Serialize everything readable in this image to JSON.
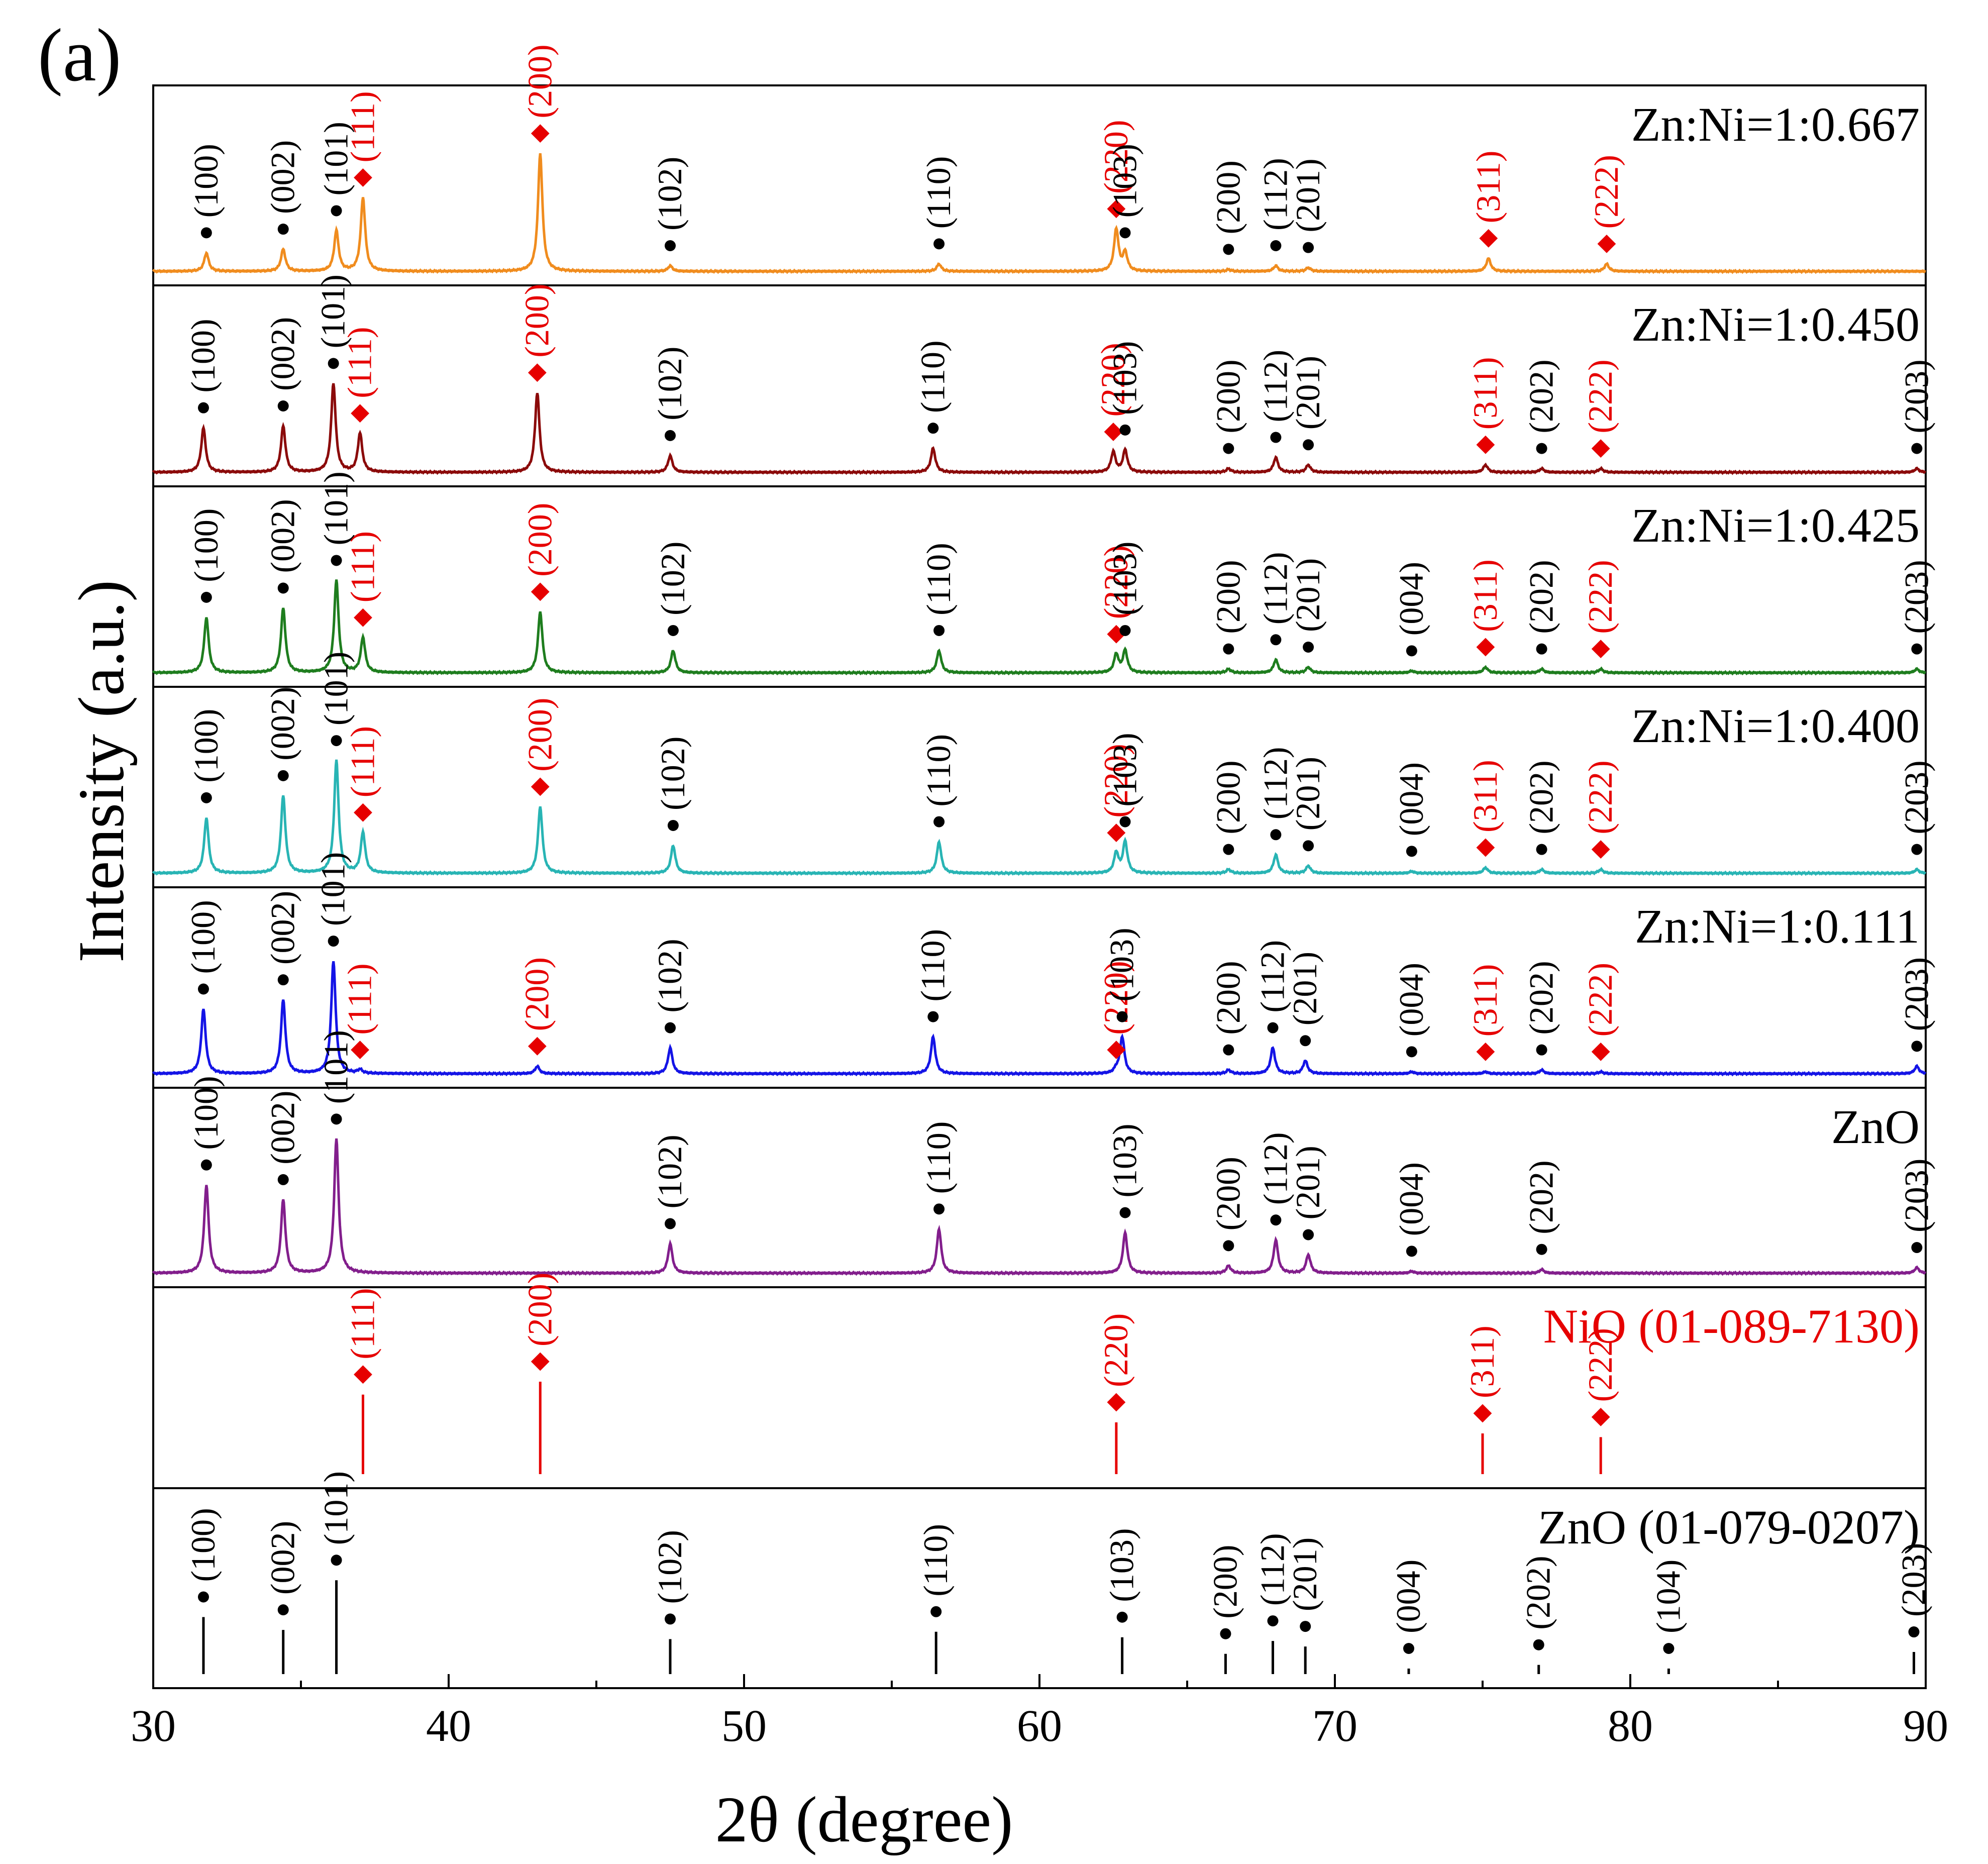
{
  "panel_label": "(a)",
  "chart_data": {
    "type": "line",
    "xlabel": "2θ (degree)",
    "ylabel": "Intensity (a.u.)",
    "xlim": [
      30,
      90
    ],
    "xticks": [
      30,
      40,
      50,
      60,
      70,
      80,
      90
    ],
    "grid": false,
    "colors": {
      "Zn:Ni=1:0.667": "#f08c1e",
      "Zn:Ni=1:0.450": "#8b0a0a",
      "Zn:Ni=1:0.425": "#1e7d1e",
      "Zn:Ni=1:0.400": "#28b4b4",
      "Zn:Ni=1:0.111": "#1414e6",
      "ZnO": "#821e8c",
      "NiO (01-089-7130)": "#e60000",
      "ZnO (01-079-0207)": "#000000",
      "zno_label": "#000000",
      "nio_label": "#e60000"
    },
    "panels": [
      {
        "label": "Zn:Ni=1:0.667",
        "kind": "pattern",
        "peaks": [
          {
            "x": 31.8,
            "h": 0.1,
            "hkl": "(100)",
            "phase": "ZnO"
          },
          {
            "x": 34.4,
            "h": 0.12,
            "hkl": "(002)",
            "phase": "ZnO"
          },
          {
            "x": 36.2,
            "h": 0.22,
            "hkl": "(101)",
            "phase": "ZnO"
          },
          {
            "x": 37.1,
            "h": 0.4,
            "hkl": "(111)",
            "phase": "NiO"
          },
          {
            "x": 43.1,
            "h": 0.64,
            "hkl": "(200)",
            "phase": "NiO"
          },
          {
            "x": 47.5,
            "h": 0.03,
            "hkl": "(102)",
            "phase": "ZnO"
          },
          {
            "x": 56.6,
            "h": 0.04,
            "hkl": "(110)",
            "phase": "ZnO"
          },
          {
            "x": 62.6,
            "h": 0.23,
            "hkl": "(220)",
            "phase": "NiO"
          },
          {
            "x": 62.9,
            "h": 0.1,
            "hkl": "(103)",
            "phase": "ZnO"
          },
          {
            "x": 66.4,
            "h": 0.01,
            "hkl": "(200)",
            "phase": "ZnO"
          },
          {
            "x": 68.0,
            "h": 0.03,
            "hkl": "(112)",
            "phase": "ZnO"
          },
          {
            "x": 69.1,
            "h": 0.02,
            "hkl": "(201)",
            "phase": "ZnO"
          },
          {
            "x": 75.2,
            "h": 0.07,
            "hkl": "(311)",
            "phase": "NiO"
          },
          {
            "x": 79.2,
            "h": 0.04,
            "hkl": "(222)",
            "phase": "NiO"
          }
        ]
      },
      {
        "label": "Zn:Ni=1:0.450",
        "kind": "pattern",
        "peaks": [
          {
            "x": 31.7,
            "h": 0.24,
            "hkl": "(100)",
            "phase": "ZnO"
          },
          {
            "x": 34.4,
            "h": 0.25,
            "hkl": "(002)",
            "phase": "ZnO"
          },
          {
            "x": 36.1,
            "h": 0.48,
            "hkl": "(101)",
            "phase": "ZnO"
          },
          {
            "x": 37.0,
            "h": 0.21,
            "hkl": "(111)",
            "phase": "NiO"
          },
          {
            "x": 43.0,
            "h": 0.43,
            "hkl": "(200)",
            "phase": "NiO"
          },
          {
            "x": 47.5,
            "h": 0.09,
            "hkl": "(102)",
            "phase": "ZnO"
          },
          {
            "x": 56.4,
            "h": 0.13,
            "hkl": "(110)",
            "phase": "ZnO"
          },
          {
            "x": 62.5,
            "h": 0.11,
            "hkl": "(220)",
            "phase": "NiO"
          },
          {
            "x": 62.9,
            "h": 0.12,
            "hkl": "(103)",
            "phase": "ZnO"
          },
          {
            "x": 66.4,
            "h": 0.02,
            "hkl": "(200)",
            "phase": "ZnO"
          },
          {
            "x": 68.0,
            "h": 0.08,
            "hkl": "(112)",
            "phase": "ZnO"
          },
          {
            "x": 69.1,
            "h": 0.04,
            "hkl": "(201)",
            "phase": "ZnO"
          },
          {
            "x": 75.1,
            "h": 0.04,
            "hkl": "(311)",
            "phase": "NiO"
          },
          {
            "x": 77.0,
            "h": 0.02,
            "hkl": "(202)",
            "phase": "ZnO"
          },
          {
            "x": 79.0,
            "h": 0.02,
            "hkl": "(222)",
            "phase": "NiO"
          },
          {
            "x": 89.7,
            "h": 0.02,
            "hkl": "(203)",
            "phase": "ZnO"
          }
        ]
      },
      {
        "label": "Zn:Ni=1:0.425",
        "kind": "pattern",
        "peaks": [
          {
            "x": 31.8,
            "h": 0.3,
            "hkl": "(100)",
            "phase": "ZnO"
          },
          {
            "x": 34.4,
            "h": 0.35,
            "hkl": "(002)",
            "phase": "ZnO"
          },
          {
            "x": 36.2,
            "h": 0.5,
            "hkl": "(101)",
            "phase": "ZnO"
          },
          {
            "x": 37.1,
            "h": 0.19,
            "hkl": "(111)",
            "phase": "NiO"
          },
          {
            "x": 43.1,
            "h": 0.33,
            "hkl": "(200)",
            "phase": "NiO"
          },
          {
            "x": 47.6,
            "h": 0.12,
            "hkl": "(102)",
            "phase": "ZnO"
          },
          {
            "x": 56.6,
            "h": 0.12,
            "hkl": "(110)",
            "phase": "ZnO"
          },
          {
            "x": 62.6,
            "h": 0.1,
            "hkl": "(220)",
            "phase": "NiO"
          },
          {
            "x": 62.9,
            "h": 0.12,
            "hkl": "(103)",
            "phase": "ZnO"
          },
          {
            "x": 66.4,
            "h": 0.02,
            "hkl": "(200)",
            "phase": "ZnO"
          },
          {
            "x": 68.0,
            "h": 0.07,
            "hkl": "(112)",
            "phase": "ZnO"
          },
          {
            "x": 69.1,
            "h": 0.03,
            "hkl": "(201)",
            "phase": "ZnO"
          },
          {
            "x": 72.6,
            "h": 0.01,
            "hkl": "(004)",
            "phase": "ZnO"
          },
          {
            "x": 75.1,
            "h": 0.03,
            "hkl": "(311)",
            "phase": "NiO"
          },
          {
            "x": 77.0,
            "h": 0.02,
            "hkl": "(202)",
            "phase": "ZnO"
          },
          {
            "x": 79.0,
            "h": 0.02,
            "hkl": "(222)",
            "phase": "NiO"
          },
          {
            "x": 89.7,
            "h": 0.02,
            "hkl": "(203)",
            "phase": "ZnO"
          }
        ]
      },
      {
        "label": "Zn:Ni=1:0.400",
        "kind": "pattern",
        "peaks": [
          {
            "x": 31.8,
            "h": 0.3,
            "hkl": "(100)",
            "phase": "ZnO"
          },
          {
            "x": 34.4,
            "h": 0.42,
            "hkl": "(002)",
            "phase": "ZnO"
          },
          {
            "x": 36.2,
            "h": 0.61,
            "hkl": "(101)",
            "phase": "ZnO"
          },
          {
            "x": 37.1,
            "h": 0.22,
            "hkl": "(111)",
            "phase": "NiO"
          },
          {
            "x": 43.1,
            "h": 0.36,
            "hkl": "(200)",
            "phase": "NiO"
          },
          {
            "x": 47.6,
            "h": 0.15,
            "hkl": "(102)",
            "phase": "ZnO"
          },
          {
            "x": 56.6,
            "h": 0.17,
            "hkl": "(110)",
            "phase": "ZnO"
          },
          {
            "x": 62.6,
            "h": 0.11,
            "hkl": "(220)",
            "phase": "NiO"
          },
          {
            "x": 62.9,
            "h": 0.17,
            "hkl": "(103)",
            "phase": "ZnO"
          },
          {
            "x": 66.4,
            "h": 0.02,
            "hkl": "(200)",
            "phase": "ZnO"
          },
          {
            "x": 68.0,
            "h": 0.1,
            "hkl": "(112)",
            "phase": "ZnO"
          },
          {
            "x": 69.1,
            "h": 0.04,
            "hkl": "(201)",
            "phase": "ZnO"
          },
          {
            "x": 72.6,
            "h": 0.01,
            "hkl": "(004)",
            "phase": "ZnO"
          },
          {
            "x": 75.1,
            "h": 0.03,
            "hkl": "(311)",
            "phase": "NiO"
          },
          {
            "x": 77.0,
            "h": 0.02,
            "hkl": "(202)",
            "phase": "ZnO"
          },
          {
            "x": 79.0,
            "h": 0.02,
            "hkl": "(222)",
            "phase": "NiO"
          },
          {
            "x": 89.7,
            "h": 0.02,
            "hkl": "(203)",
            "phase": "ZnO"
          }
        ]
      },
      {
        "label": "Zn:Ni=1:0.111",
        "kind": "pattern",
        "peaks": [
          {
            "x": 31.7,
            "h": 0.35,
            "hkl": "(100)",
            "phase": "ZnO"
          },
          {
            "x": 34.4,
            "h": 0.4,
            "hkl": "(002)",
            "phase": "ZnO"
          },
          {
            "x": 36.1,
            "h": 0.61,
            "hkl": "(101)",
            "phase": "ZnO"
          },
          {
            "x": 37.0,
            "h": 0.02,
            "hkl": "(111)",
            "phase": "NiO"
          },
          {
            "x": 43.0,
            "h": 0.04,
            "hkl": "(200)",
            "phase": "NiO"
          },
          {
            "x": 47.5,
            "h": 0.14,
            "hkl": "(102)",
            "phase": "ZnO"
          },
          {
            "x": 56.4,
            "h": 0.2,
            "hkl": "(110)",
            "phase": "ZnO"
          },
          {
            "x": 62.6,
            "h": 0.02,
            "hkl": "(220)",
            "phase": "NiO"
          },
          {
            "x": 62.8,
            "h": 0.2,
            "hkl": "(103)",
            "phase": "ZnO"
          },
          {
            "x": 66.4,
            "h": 0.02,
            "hkl": "(200)",
            "phase": "ZnO"
          },
          {
            "x": 67.9,
            "h": 0.14,
            "hkl": "(112)",
            "phase": "ZnO"
          },
          {
            "x": 69.0,
            "h": 0.07,
            "hkl": "(201)",
            "phase": "ZnO"
          },
          {
            "x": 72.6,
            "h": 0.01,
            "hkl": "(004)",
            "phase": "ZnO"
          },
          {
            "x": 75.1,
            "h": 0.01,
            "hkl": "(311)",
            "phase": "NiO"
          },
          {
            "x": 77.0,
            "h": 0.02,
            "hkl": "(202)",
            "phase": "ZnO"
          },
          {
            "x": 79.0,
            "h": 0.01,
            "hkl": "(222)",
            "phase": "NiO"
          },
          {
            "x": 89.7,
            "h": 0.04,
            "hkl": "(203)",
            "phase": "ZnO"
          }
        ]
      },
      {
        "label": "ZnO",
        "kind": "pattern",
        "peaks": [
          {
            "x": 31.8,
            "h": 0.48,
            "hkl": "(100)",
            "phase": "ZnO"
          },
          {
            "x": 34.4,
            "h": 0.4,
            "hkl": "(002)",
            "phase": "ZnO"
          },
          {
            "x": 36.2,
            "h": 0.73,
            "hkl": "(101)",
            "phase": "ZnO"
          },
          {
            "x": 47.5,
            "h": 0.16,
            "hkl": "(102)",
            "phase": "ZnO"
          },
          {
            "x": 56.6,
            "h": 0.24,
            "hkl": "(110)",
            "phase": "ZnO"
          },
          {
            "x": 62.9,
            "h": 0.22,
            "hkl": "(103)",
            "phase": "ZnO"
          },
          {
            "x": 66.4,
            "h": 0.04,
            "hkl": "(200)",
            "phase": "ZnO"
          },
          {
            "x": 68.0,
            "h": 0.18,
            "hkl": "(112)",
            "phase": "ZnO"
          },
          {
            "x": 69.1,
            "h": 0.1,
            "hkl": "(201)",
            "phase": "ZnO"
          },
          {
            "x": 72.6,
            "h": 0.01,
            "hkl": "(004)",
            "phase": "ZnO"
          },
          {
            "x": 77.0,
            "h": 0.02,
            "hkl": "(202)",
            "phase": "ZnO"
          },
          {
            "x": 89.7,
            "h": 0.03,
            "hkl": "(203)",
            "phase": "ZnO"
          }
        ]
      },
      {
        "label": "NiO (01-089-7130)",
        "label_main": "NiO",
        "label_card": "(01-089-7130)",
        "kind": "reference",
        "peaks": [
          {
            "x": 37.1,
            "h": 0.43,
            "hkl": "(111)",
            "phase": "NiO"
          },
          {
            "x": 43.1,
            "h": 0.5,
            "hkl": "(200)",
            "phase": "NiO"
          },
          {
            "x": 62.6,
            "h": 0.28,
            "hkl": "(220)",
            "phase": "NiO"
          },
          {
            "x": 75.0,
            "h": 0.22,
            "hkl": "(311)",
            "phase": "NiO"
          },
          {
            "x": 79.0,
            "h": 0.2,
            "hkl": "(222)",
            "phase": "NiO"
          }
        ]
      },
      {
        "label": "ZnO (01-079-0207)",
        "label_main": "ZnO",
        "label_card": "(01-079-0207)",
        "kind": "reference",
        "peaks": [
          {
            "x": 31.7,
            "h": 0.31,
            "hkl": "(100)",
            "phase": "ZnO"
          },
          {
            "x": 34.4,
            "h": 0.24,
            "hkl": "(002)",
            "phase": "ZnO"
          },
          {
            "x": 36.2,
            "h": 0.51,
            "hkl": "(101)",
            "phase": "ZnO"
          },
          {
            "x": 47.5,
            "h": 0.19,
            "hkl": "(102)",
            "phase": "ZnO"
          },
          {
            "x": 56.5,
            "h": 0.23,
            "hkl": "(110)",
            "phase": "ZnO"
          },
          {
            "x": 62.8,
            "h": 0.2,
            "hkl": "(103)",
            "phase": "ZnO"
          },
          {
            "x": 66.3,
            "h": 0.11,
            "hkl": "(200)",
            "phase": "ZnO"
          },
          {
            "x": 67.9,
            "h": 0.18,
            "hkl": "(112)",
            "phase": "ZnO"
          },
          {
            "x": 69.0,
            "h": 0.15,
            "hkl": "(201)",
            "phase": "ZnO"
          },
          {
            "x": 72.5,
            "h": 0.03,
            "hkl": "(004)",
            "phase": "ZnO"
          },
          {
            "x": 76.9,
            "h": 0.05,
            "hkl": "(202)",
            "phase": "ZnO"
          },
          {
            "x": 81.3,
            "h": 0.03,
            "hkl": "(104)",
            "phase": "ZnO"
          },
          {
            "x": 89.6,
            "h": 0.12,
            "hkl": "(203)",
            "phase": "ZnO"
          }
        ]
      }
    ]
  }
}
